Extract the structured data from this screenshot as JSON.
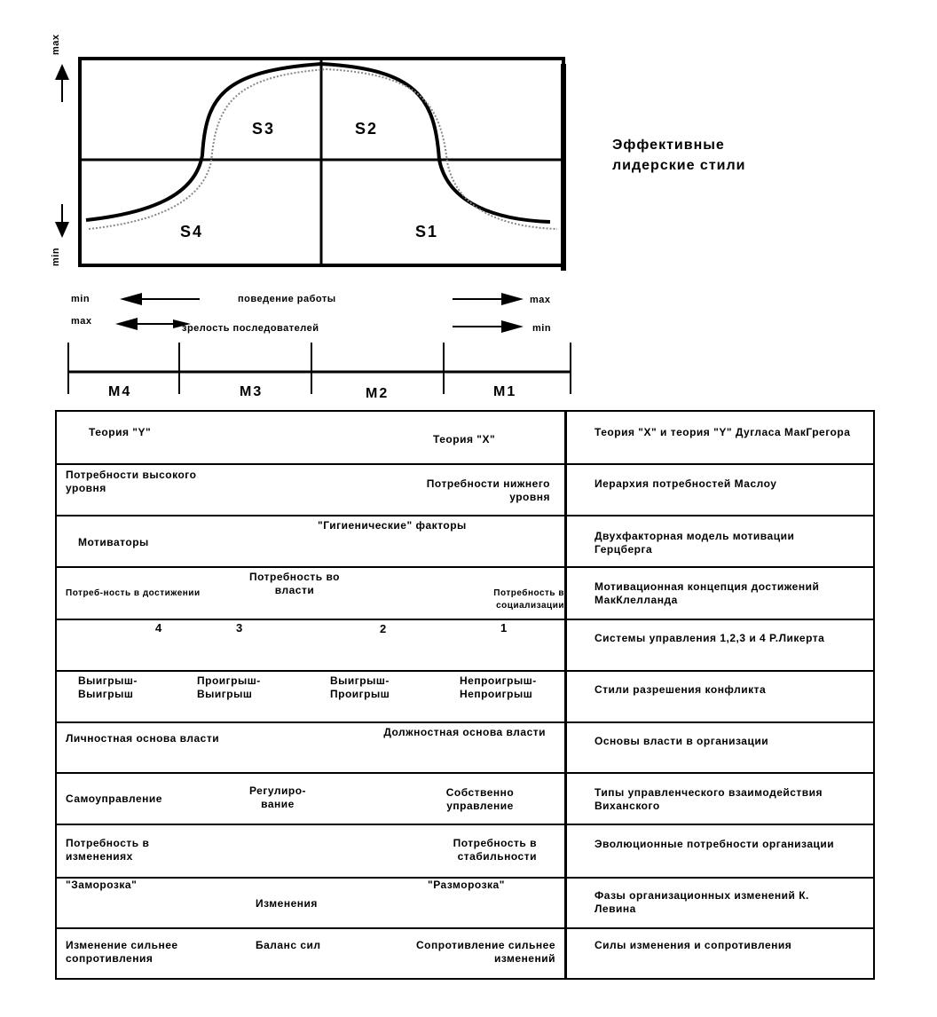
{
  "diagram": {
    "axis_max": "max",
    "axis_min": "min",
    "quadrants": [
      "S3",
      "S2",
      "S4",
      "S1"
    ],
    "title": "Эффективные лидерские стили"
  },
  "scale": {
    "row1": {
      "left": "min",
      "center": "поведение работы",
      "right": "max"
    },
    "row2": {
      "left": "max",
      "center": "зрелость последователей",
      "right": "min"
    },
    "maturity": [
      "M4",
      "M3",
      "M2",
      "M1"
    ]
  },
  "table": {
    "rows": [
      {
        "left": [
          "Теория \"Y\"",
          "Теория \"X\""
        ],
        "right": "Теория \"X\" и теория \"Y\" Дугласа МакГрегора"
      },
      {
        "left": [
          "Потребности высокого уровня",
          "Потребности нижнего уровня"
        ],
        "right": "Иерархия потребностей Маслоу"
      },
      {
        "left": [
          "Мотиваторы",
          "\"Гигиенические\" факторы"
        ],
        "right": "Двухфакторная модель мотивации Герцберга"
      },
      {
        "left": [
          "Потреб-ность в достижении",
          "Потребность во власти",
          "Потребность в социализации"
        ],
        "right": "Мотивационная концепция достижений МакКлелланда"
      },
      {
        "left": [
          "4",
          "3",
          "2",
          "1"
        ],
        "right": "Системы управления 1,2,3 и 4 Р.Ликерта"
      },
      {
        "left": [
          "Выигрыш-Выигрыш",
          "Проигрыш-Выигрыш",
          "Выигрыш-Проигрыш",
          "Непроигрыш-Непроигрыш"
        ],
        "right": "Стили разрешения конфликта"
      },
      {
        "left": [
          "Личностная основа власти",
          "Должностная основа власти"
        ],
        "right": "Основы власти в организации"
      },
      {
        "left": [
          "Самоуправление",
          "Регулиро-вание",
          "Собственно управление"
        ],
        "right": "Типы управленческого взаимодействия Виханского"
      },
      {
        "left": [
          "Потребность в изменениях",
          "Потребность в стабильности"
        ],
        "right": "Эволюционные потребности организации"
      },
      {
        "left": [
          "\"Заморозка\"",
          "Изменения",
          "\"Разморозка\""
        ],
        "right": "Фазы организационных изменений К. Левина"
      },
      {
        "left": [
          "Изменение сильнее сопротивления",
          "Баланс сил",
          "Сопротивление сильнее изменений"
        ],
        "right": "Силы изменения и сопротивления"
      }
    ]
  }
}
